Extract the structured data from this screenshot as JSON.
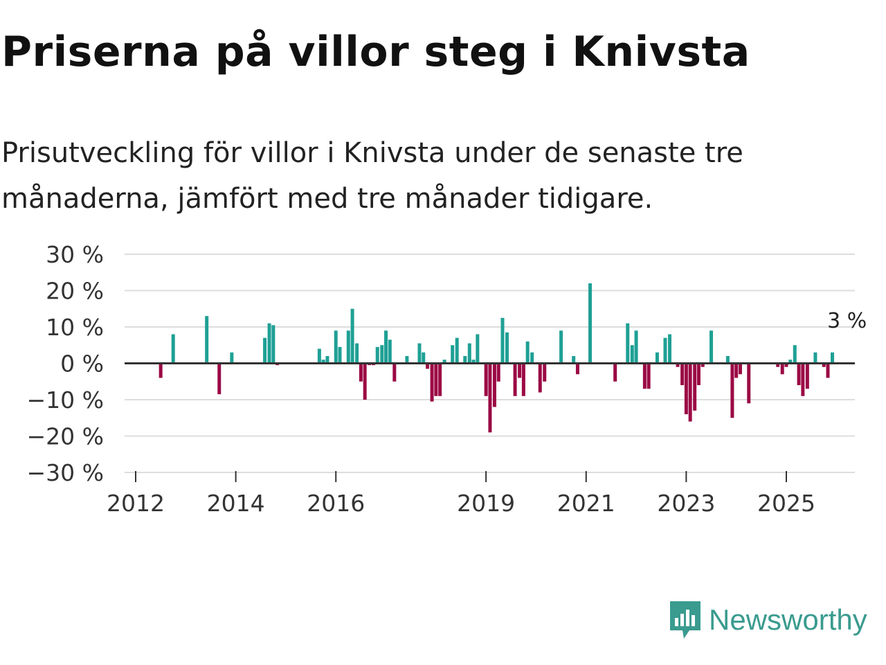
{
  "header": {
    "title": "Priserna på villor steg i Knivsta",
    "subtitle": "Prisutveckling för villor i Knivsta under de senaste tre månaderna, jämfört med tre månader tidigare."
  },
  "brand": {
    "name": "Newsworthy"
  },
  "colors": {
    "positive": "#1fa095",
    "negative": "#9b0a45",
    "grid": "#dddddd",
    "axis": "#333333"
  },
  "chart_data": {
    "type": "bar",
    "title": "Priserna på villor steg i Knivsta",
    "ylabel": "",
    "xlabel": "",
    "ylim": [
      -30,
      30
    ],
    "yticks": [
      30,
      20,
      10,
      0,
      -10,
      -20,
      -30
    ],
    "ytick_labels": [
      "30 %",
      "20 %",
      "10 %",
      "0 %",
      "−10 %",
      "−20 %",
      "−30 %"
    ],
    "xticks": [
      2012,
      2014,
      2016,
      2019,
      2021,
      2023,
      2025
    ],
    "xlim": [
      2011.85,
      2026.4
    ],
    "annotation": {
      "text": "3 %",
      "x": 2025.66,
      "y": 3
    },
    "points": [
      {
        "x": 2012.5,
        "y": -4
      },
      {
        "x": 2012.75,
        "y": 8
      },
      {
        "x": 2013.42,
        "y": 13
      },
      {
        "x": 2013.67,
        "y": -8.5
      },
      {
        "x": 2013.92,
        "y": 3
      },
      {
        "x": 2014.58,
        "y": 7
      },
      {
        "x": 2014.67,
        "y": 11
      },
      {
        "x": 2014.75,
        "y": 10.5
      },
      {
        "x": 2014.83,
        "y": -0.5
      },
      {
        "x": 2015.67,
        "y": 4
      },
      {
        "x": 2015.75,
        "y": 1
      },
      {
        "x": 2015.83,
        "y": 2
      },
      {
        "x": 2016.0,
        "y": 9
      },
      {
        "x": 2016.08,
        "y": 4.5
      },
      {
        "x": 2016.25,
        "y": 9
      },
      {
        "x": 2016.33,
        "y": 15
      },
      {
        "x": 2016.42,
        "y": 5.5
      },
      {
        "x": 2016.5,
        "y": -5
      },
      {
        "x": 2016.58,
        "y": -10
      },
      {
        "x": 2016.67,
        "y": -0.5
      },
      {
        "x": 2016.75,
        "y": -0.5
      },
      {
        "x": 2016.83,
        "y": 4.5
      },
      {
        "x": 2016.92,
        "y": 5
      },
      {
        "x": 2017.0,
        "y": 9
      },
      {
        "x": 2017.08,
        "y": 6.5
      },
      {
        "x": 2017.17,
        "y": -5
      },
      {
        "x": 2017.42,
        "y": 2
      },
      {
        "x": 2017.67,
        "y": 5.5
      },
      {
        "x": 2017.75,
        "y": 3
      },
      {
        "x": 2017.83,
        "y": -1.5
      },
      {
        "x": 2017.92,
        "y": -10.5
      },
      {
        "x": 2018.0,
        "y": -9
      },
      {
        "x": 2018.08,
        "y": -9
      },
      {
        "x": 2018.17,
        "y": 1
      },
      {
        "x": 2018.33,
        "y": 5
      },
      {
        "x": 2018.42,
        "y": 7
      },
      {
        "x": 2018.58,
        "y": 2
      },
      {
        "x": 2018.67,
        "y": 5.5
      },
      {
        "x": 2018.75,
        "y": 1
      },
      {
        "x": 2018.83,
        "y": 8
      },
      {
        "x": 2019.0,
        "y": -9
      },
      {
        "x": 2019.08,
        "y": -19
      },
      {
        "x": 2019.17,
        "y": -12
      },
      {
        "x": 2019.25,
        "y": -5
      },
      {
        "x": 2019.33,
        "y": 12.5
      },
      {
        "x": 2019.42,
        "y": 8.5
      },
      {
        "x": 2019.58,
        "y": -9
      },
      {
        "x": 2019.67,
        "y": -4
      },
      {
        "x": 2019.75,
        "y": -9
      },
      {
        "x": 2019.83,
        "y": 6
      },
      {
        "x": 2019.92,
        "y": 3
      },
      {
        "x": 2020.08,
        "y": -8
      },
      {
        "x": 2020.17,
        "y": -5
      },
      {
        "x": 2020.5,
        "y": 9
      },
      {
        "x": 2020.75,
        "y": 2
      },
      {
        "x": 2020.83,
        "y": -3
      },
      {
        "x": 2021.08,
        "y": 22
      },
      {
        "x": 2021.58,
        "y": -5
      },
      {
        "x": 2021.83,
        "y": 11
      },
      {
        "x": 2021.92,
        "y": 5
      },
      {
        "x": 2022.0,
        "y": 9
      },
      {
        "x": 2022.17,
        "y": -7
      },
      {
        "x": 2022.25,
        "y": -7
      },
      {
        "x": 2022.42,
        "y": 3
      },
      {
        "x": 2022.58,
        "y": 7
      },
      {
        "x": 2022.67,
        "y": 8
      },
      {
        "x": 2022.83,
        "y": -1
      },
      {
        "x": 2022.92,
        "y": -6
      },
      {
        "x": 2023.0,
        "y": -14
      },
      {
        "x": 2023.08,
        "y": -16
      },
      {
        "x": 2023.17,
        "y": -13
      },
      {
        "x": 2023.25,
        "y": -6
      },
      {
        "x": 2023.33,
        "y": -1
      },
      {
        "x": 2023.5,
        "y": 9
      },
      {
        "x": 2023.83,
        "y": 2
      },
      {
        "x": 2023.92,
        "y": -15
      },
      {
        "x": 2024.0,
        "y": -4
      },
      {
        "x": 2024.08,
        "y": -3
      },
      {
        "x": 2024.25,
        "y": -11
      },
      {
        "x": 2024.83,
        "y": -1
      },
      {
        "x": 2024.92,
        "y": -3
      },
      {
        "x": 2025.0,
        "y": -1
      },
      {
        "x": 2025.08,
        "y": 1
      },
      {
        "x": 2025.17,
        "y": 5
      },
      {
        "x": 2025.25,
        "y": -6
      },
      {
        "x": 2025.33,
        "y": -9
      },
      {
        "x": 2025.42,
        "y": -7
      },
      {
        "x": 2025.58,
        "y": 3
      },
      {
        "x": 2025.75,
        "y": -1
      },
      {
        "x": 2025.83,
        "y": -4
      },
      {
        "x": 2025.92,
        "y": 3
      }
    ]
  }
}
